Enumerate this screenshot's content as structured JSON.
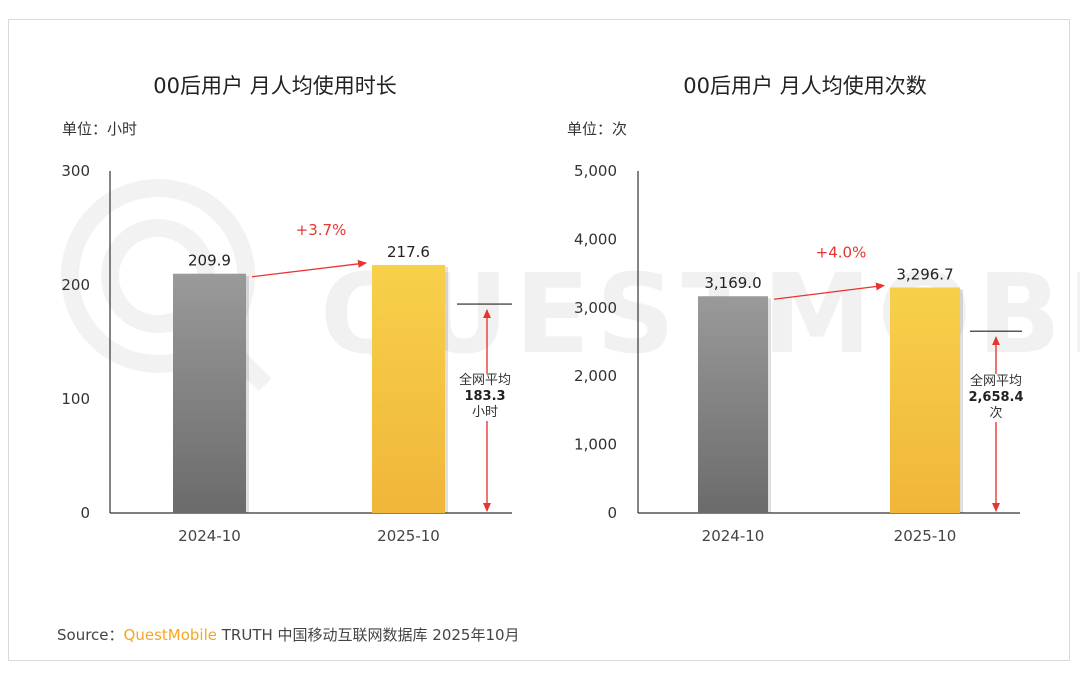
{
  "charts": [
    {
      "title": "00后用户 月人均使用时长",
      "unit": "单位：小时",
      "average": {
        "label": "全网平均",
        "value": "183.3",
        "unit": "小时"
      },
      "growth": "+3.7%"
    },
    {
      "title": "00后用户 月人均使用次数",
      "unit": "单位：次",
      "average": {
        "label": "全网平均",
        "value": "2,658.4",
        "unit": "次"
      },
      "growth": "+4.0%"
    }
  ],
  "footer": {
    "prefix": "Source：",
    "brand": "QuestMobile",
    "suffix": " TRUTH 中国移动互联网数据库 2025年10月"
  },
  "watermark": "QUESTMOBILE",
  "colors": {
    "gray_top": "#9a9a9a",
    "gray_bottom": "#6b6b6b",
    "gold_top": "#f7d04a",
    "gold_bottom": "#f0b63a",
    "accent_red": "#e8352f",
    "brand": "#f5a623"
  },
  "chart_data": [
    {
      "type": "bar",
      "title": "00后用户 月人均使用时长",
      "ylabel": "小时",
      "categories": [
        "2024-10",
        "2025-10"
      ],
      "values": [
        209.9,
        217.6
      ],
      "value_labels": [
        "209.9",
        "217.6"
      ],
      "ylim": [
        0,
        300
      ],
      "yticks": [
        0,
        100,
        200,
        300
      ],
      "ytick_labels": [
        "0",
        "100",
        "200",
        "300"
      ],
      "reference_line": 183.3,
      "growth_annotation": "+3.7%"
    },
    {
      "type": "bar",
      "title": "00后用户 月人均使用次数",
      "ylabel": "次",
      "categories": [
        "2024-10",
        "2025-10"
      ],
      "values": [
        3169.0,
        3296.7
      ],
      "value_labels": [
        "3,169.0",
        "3,296.7"
      ],
      "ylim": [
        0,
        5000
      ],
      "yticks": [
        0,
        1000,
        2000,
        3000,
        4000,
        5000
      ],
      "ytick_labels": [
        "0",
        "1,000",
        "2,000",
        "3,000",
        "4,000",
        "5,000"
      ],
      "reference_line": 2658.4,
      "growth_annotation": "+4.0%"
    }
  ]
}
